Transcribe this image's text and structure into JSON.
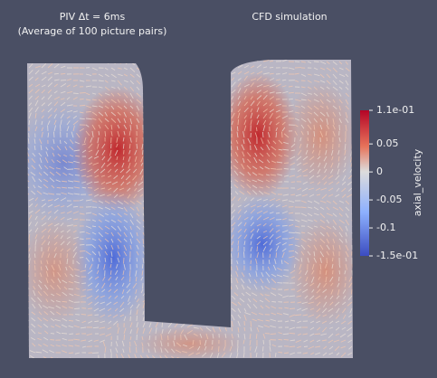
{
  "titles": {
    "piv": "PIV Δt = 6ms",
    "piv_sub": "(Average of 100 picture pairs)",
    "cfd": "CFD simulation"
  },
  "colorbar": {
    "title": "axial_velocity",
    "range": [
      -0.15,
      0.11
    ],
    "ticks": [
      {
        "value": 0.11,
        "label": "1.1e-01"
      },
      0.05,
      0,
      -0.05,
      -0.1,
      {
        "value": -0.15,
        "label": "-1.5e-01"
      }
    ]
  }
}
